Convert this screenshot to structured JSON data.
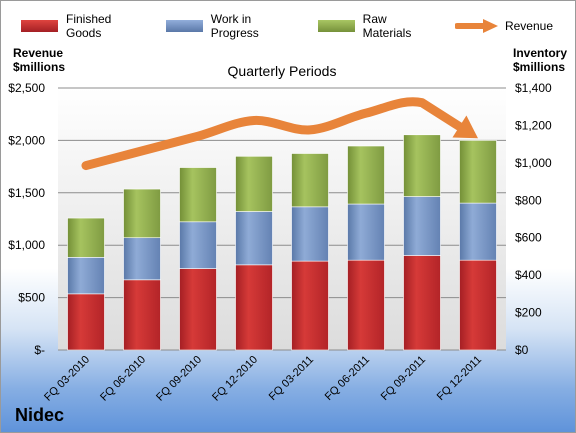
{
  "company": "Nidec",
  "left_axis_label": "Revenue\n$millions",
  "right_axis_label": "Inventory\n$millions",
  "chart_data": {
    "type": "bar",
    "stacked": true,
    "title": "Quarterly Periods",
    "categories": [
      "FQ 03-2010",
      "FQ 06-2010",
      "FQ 09-2010",
      "FQ 12-2010",
      "FQ 03-2011",
      "FQ 06-2011",
      "FQ 09-2011",
      "FQ 12-2011"
    ],
    "series": [
      {
        "name": "Finished Goods",
        "axis": "right",
        "color": "#c0282d",
        "values": [
          300,
          375,
          435,
          455,
          475,
          480,
          505,
          480
        ]
      },
      {
        "name": "Work in Progress",
        "axis": "right",
        "color": "#6f8fbf",
        "values": [
          195,
          225,
          250,
          285,
          290,
          300,
          315,
          305
        ]
      },
      {
        "name": "Raw Materials",
        "axis": "right",
        "color": "#8caa4a",
        "values": [
          210,
          260,
          290,
          295,
          285,
          310,
          330,
          335
        ]
      }
    ],
    "line": {
      "name": "Revenue",
      "axis": "left",
      "color": "#e8843a",
      "values": [
        1760,
        1900,
        2040,
        2190,
        2100,
        2260,
        2360,
        2020
      ]
    },
    "left_axis": {
      "ylim": [
        0,
        2500
      ],
      "ticks": [
        "$-",
        "$500",
        "$1,000",
        "$1,500",
        "$2,000",
        "$2,500"
      ]
    },
    "right_axis": {
      "ylim": [
        0,
        1400
      ],
      "ticks": [
        "$0",
        "$200",
        "$400",
        "$600",
        "$800",
        "$1,000",
        "$1,200",
        "$1,400"
      ]
    },
    "legend_position": "top",
    "grid": true
  }
}
